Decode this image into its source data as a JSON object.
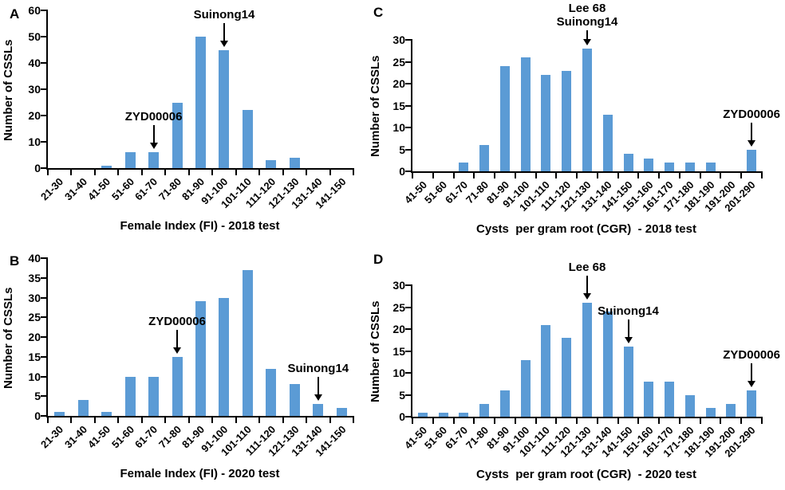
{
  "colors": {
    "bar": "#5B9BD5",
    "axis": "#000000",
    "text": "#000000"
  },
  "chart_data": [
    {
      "type": "bar",
      "panel": "A",
      "ylabel": "Number of CSSLs",
      "xlabel": "Female Index (FI) - 2018 test",
      "ylim": [
        0,
        60
      ],
      "yticks": [
        0,
        10,
        20,
        30,
        40,
        50,
        60
      ],
      "grid": false,
      "legend": false,
      "categories": [
        "21-30",
        "31-40",
        "41-50",
        "51-60",
        "61-70",
        "71-80",
        "81-90",
        "91-100",
        "101-110",
        "111-120",
        "121-130",
        "131-140",
        "141-150"
      ],
      "values": [
        0,
        0,
        1,
        6,
        6,
        25,
        50,
        45,
        22,
        3,
        4,
        0,
        0
      ],
      "annotations": [
        {
          "lines": [
            "ZYD00006"
          ],
          "category": "61-70",
          "value": 6
        },
        {
          "lines": [
            "Suinong14"
          ],
          "category": "91-100",
          "value": 45
        }
      ]
    },
    {
      "type": "bar",
      "panel": "B",
      "ylabel": "Number of CSSLs",
      "xlabel": "Female Index (FI) - 2020 test",
      "ylim": [
        0,
        40
      ],
      "yticks": [
        0,
        5,
        10,
        15,
        20,
        25,
        30,
        35,
        40
      ],
      "grid": false,
      "legend": false,
      "categories": [
        "21-30",
        "31-40",
        "41-50",
        "51-60",
        "61-70",
        "71-80",
        "81-90",
        "91-100",
        "101-110",
        "111-120",
        "121-130",
        "131-140",
        "141-150"
      ],
      "values": [
        1,
        4,
        1,
        10,
        10,
        15,
        29,
        30,
        37,
        12,
        8,
        3,
        2
      ],
      "annotations": [
        {
          "lines": [
            "ZYD00006"
          ],
          "category": "71-80",
          "value": 15
        },
        {
          "lines": [
            "Suinong14"
          ],
          "category": "131-140",
          "value": 3
        }
      ]
    },
    {
      "type": "bar",
      "panel": "C",
      "ylabel": "Number of CSSLs",
      "xlabel": "Cysts  per gram root (CGR)  - 2018 test",
      "ylim": [
        0,
        30
      ],
      "yticks": [
        0,
        5,
        10,
        15,
        20,
        25,
        30
      ],
      "grid": false,
      "legend": false,
      "categories": [
        "41-50",
        "51-60",
        "61-70",
        "71-80",
        "81-90",
        "91-100",
        "101-110",
        "111-120",
        "121-130",
        "131-140",
        "141-150",
        "151-160",
        "161-170",
        "171-180",
        "181-190",
        "191-200",
        "201-290"
      ],
      "values": [
        0,
        0,
        2,
        6,
        24,
        26,
        22,
        23,
        28,
        13,
        4,
        3,
        2,
        2,
        2,
        0,
        5
      ],
      "annotations": [
        {
          "lines": [
            "Lee 68",
            "Suinong14"
          ],
          "category": "121-130",
          "value": 28
        },
        {
          "lines": [
            "ZYD00006"
          ],
          "category": "201-290",
          "value": 5
        }
      ]
    },
    {
      "type": "bar",
      "panel": "D",
      "ylabel": "Number of CSSLs",
      "xlabel": "Cysts  per gram root (CGR)  - 2020 test",
      "ylim": [
        0,
        30
      ],
      "yticks": [
        0,
        5,
        10,
        15,
        20,
        25,
        30
      ],
      "grid": false,
      "legend": false,
      "categories": [
        "41-50",
        "51-60",
        "61-70",
        "71-80",
        "81-90",
        "91-100",
        "101-110",
        "111-120",
        "121-130",
        "131-140",
        "141-150",
        "151-160",
        "161-170",
        "171-180",
        "181-190",
        "191-200",
        "201-290"
      ],
      "values": [
        1,
        1,
        1,
        3,
        6,
        13,
        21,
        18,
        26,
        24,
        16,
        8,
        8,
        5,
        2,
        3,
        6
      ],
      "annotations": [
        {
          "lines": [
            "Lee 68"
          ],
          "category": "121-130",
          "value": 26
        },
        {
          "lines": [
            "Suinong14"
          ],
          "category": "141-150",
          "value": 16
        },
        {
          "lines": [
            "ZYD00006"
          ],
          "category": "201-290",
          "value": 6
        }
      ]
    }
  ]
}
